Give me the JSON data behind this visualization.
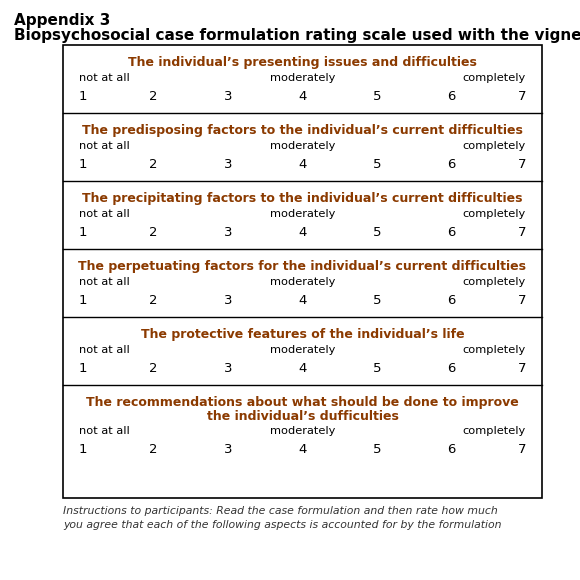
{
  "title_line1": "Appendix 3",
  "title_line2": "Biopsychosocial case formulation rating scale used with the vignette",
  "sections": [
    {
      "header_lines": [
        "The individual’s presenting issues and difficulties"
      ]
    },
    {
      "header_lines": [
        "The predisposing factors to the individual’s current difficulties"
      ]
    },
    {
      "header_lines": [
        "The precipitating factors to the individual’s current difficulties"
      ]
    },
    {
      "header_lines": [
        "The perpetuating factors for the individual’s current difficulties"
      ]
    },
    {
      "header_lines": [
        "The protective features of the individual’s life"
      ]
    },
    {
      "header_lines": [
        "The recommendations about what should be done to improve",
        "the individual’s dufficulties"
      ]
    }
  ],
  "scale_left": "not at all",
  "scale_mid": "moderately",
  "scale_right": "completely",
  "scale_numbers": [
    "1",
    "2",
    "3",
    "4",
    "5",
    "6",
    "7"
  ],
  "footer": "Instructions to participants: Read the case formulation and then rate how much\nyou agree that each of the following aspects is accounted for by the formulation",
  "bg_color": "#ffffff",
  "border_color": "#000000",
  "header_color": "#8B3A00",
  "text_color": "#000000"
}
